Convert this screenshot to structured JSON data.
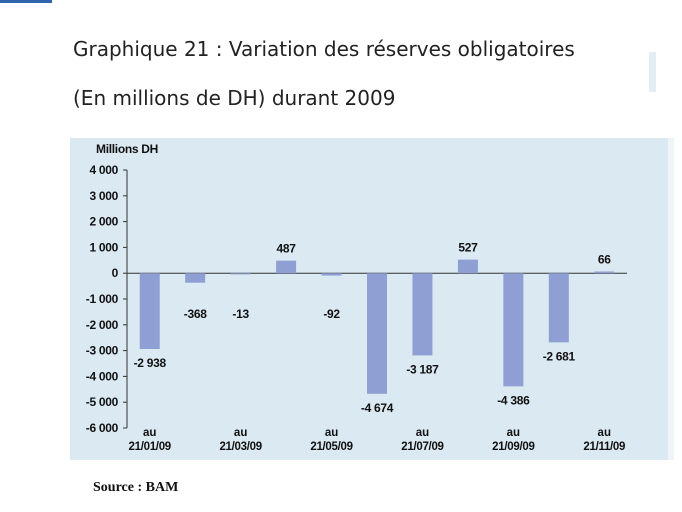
{
  "header": {
    "title_line1": "Graphique 21 : Variation des réserves obligatoires",
    "title_line2": "(En millions de DH) durant 2009"
  },
  "source": "Source : BAM",
  "colors": {
    "bar": "#8f9fd4",
    "panel": "#dbe9f2",
    "text": "#111111"
  },
  "chart_data": {
    "type": "bar",
    "title": "Graphique 21 : Variation des réserves obligatoires (En millions de DH) durant 2009",
    "ylabel": "Millions DH",
    "ylim": [
      -6000,
      4000
    ],
    "yticks": [
      4000,
      3000,
      2000,
      1000,
      0,
      -1000,
      -2000,
      -3000,
      -4000,
      -5000,
      -6000
    ],
    "ytick_labels": [
      "4 000",
      "3 000",
      "2 000",
      "1 000",
      "0",
      "-1 000",
      "-2 000",
      "-3 000",
      "-4 000",
      "-5 000",
      "-6 000"
    ],
    "categories": [
      "21/01/09",
      "",
      "21/03/09",
      "",
      "21/05/09",
      "",
      "21/07/09",
      "",
      "21/09/09",
      "",
      "21/11/09"
    ],
    "category_prefix": "au",
    "values": [
      -2938,
      -368,
      -13,
      487,
      -92,
      -4674,
      -3187,
      527,
      -4386,
      -2681,
      66
    ],
    "value_labels": [
      "-2 938",
      "-368",
      "-13",
      "487",
      "-92",
      "-4 674",
      "-3 187",
      "527",
      "-4 386",
      "-2 681",
      "66"
    ],
    "grid": false,
    "legend": "none"
  }
}
